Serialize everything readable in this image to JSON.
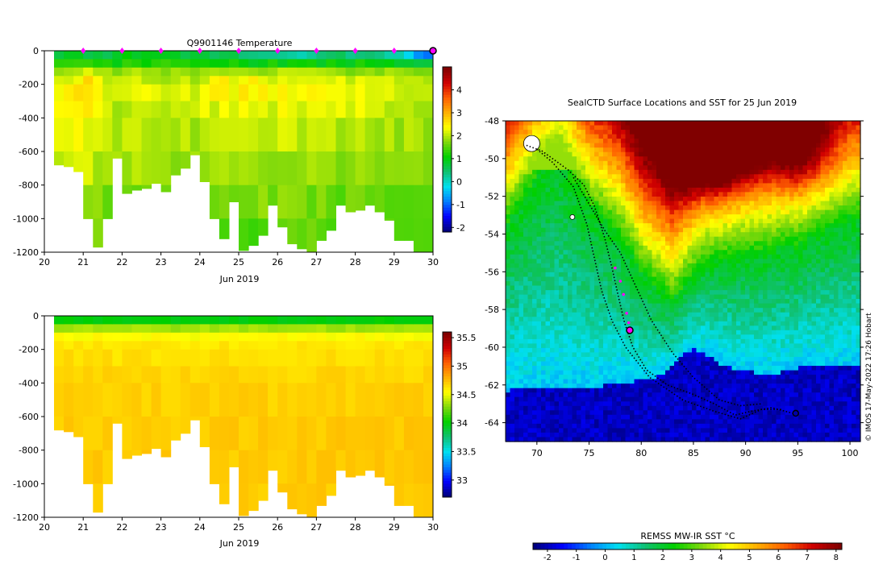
{
  "colors": {
    "cmap": [
      "#00007f",
      "#0000ff",
      "#0080ff",
      "#00e0f0",
      "#10c070",
      "#00d000",
      "#7ed80b",
      "#ffff00",
      "#ffb000",
      "#ff6000",
      "#d00000",
      "#800000"
    ],
    "land": "#ffffff",
    "track": "#000000",
    "profile_marker": "#ff00ff",
    "current_marker": "#ff00ff"
  },
  "chart_data": [
    {
      "id": "temperature",
      "type": "heatmap",
      "title": "Q9901146  Temperature",
      "xlabel": "Jun 2019",
      "ylabel": "",
      "xlim": [
        20,
        30
      ],
      "ylim": [
        -1200,
        0
      ],
      "x_ticks": [
        "20",
        "21",
        "22",
        "23",
        "24",
        "25",
        "26",
        "27",
        "28",
        "29",
        "30"
      ],
      "y_ticks": [
        "0",
        "-200",
        "-400",
        "-600",
        "-800",
        "-1000",
        "-1200"
      ],
      "colorbar": {
        "min": -2.2,
        "max": 5.0,
        "ticks": [
          "-2",
          "-1",
          "0",
          "1",
          "2",
          "3",
          "4"
        ]
      },
      "profile_days": [
        21,
        22,
        23,
        24,
        25,
        26,
        27,
        28,
        29,
        30
      ],
      "depth_bins_m": [
        0,
        50,
        100,
        150,
        200,
        300,
        400,
        600,
        800,
        1000,
        1200
      ],
      "profiles": [
        {
          "day": 20.25,
          "max_depth": 680,
          "values": [
            0.8,
            1.2,
            1.8,
            2.2,
            2.4,
            2.3,
            2.2,
            2.0,
            1.8,
            1.6
          ]
        },
        {
          "day": 20.5,
          "max_depth": 690,
          "values": [
            0.9,
            1.3,
            1.9,
            2.3,
            2.5,
            2.4,
            2.3,
            2.0,
            1.8,
            1.6
          ]
        },
        {
          "day": 20.75,
          "max_depth": 720,
          "values": [
            0.8,
            1.4,
            2.0,
            2.4,
            2.5,
            2.4,
            2.3,
            2.1,
            1.8,
            1.6
          ]
        },
        {
          "day": 21.0,
          "max_depth": 1000,
          "values": [
            0.5,
            1.5,
            2.2,
            2.6,
            2.7,
            2.5,
            2.3,
            2.1,
            1.9,
            1.7
          ]
        },
        {
          "day": 21.25,
          "max_depth": 1170,
          "values": [
            0.6,
            1.3,
            2.0,
            2.4,
            2.5,
            2.4,
            2.2,
            2.0,
            1.8,
            1.6
          ]
        },
        {
          "day": 21.5,
          "max_depth": 1000,
          "values": [
            0.7,
            1.2,
            1.8,
            2.1,
            2.2,
            2.1,
            2.0,
            1.9,
            1.7,
            1.5
          ]
        },
        {
          "day": 21.75,
          "max_depth": 640,
          "values": [
            0.8,
            1.1,
            1.7,
            2.0,
            2.1,
            2.0,
            1.9,
            1.8,
            1.7,
            1.5
          ]
        },
        {
          "day": 22.0,
          "max_depth": 850,
          "values": [
            0.9,
            1.2,
            1.9,
            2.2,
            2.2,
            2.1,
            2.0,
            1.9,
            1.7,
            1.5
          ]
        },
        {
          "day": 22.25,
          "max_depth": 830,
          "values": [
            0.9,
            1.3,
            2.0,
            2.2,
            2.3,
            2.2,
            2.0,
            1.9,
            1.7,
            1.5
          ]
        },
        {
          "day": 22.5,
          "max_depth": 820,
          "values": [
            0.8,
            1.2,
            1.8,
            2.1,
            2.2,
            2.1,
            2.0,
            1.9,
            1.7,
            1.5
          ]
        },
        {
          "day": 22.75,
          "max_depth": 790,
          "values": [
            0.9,
            1.3,
            1.9,
            2.1,
            2.2,
            2.1,
            2.0,
            1.8,
            1.7,
            1.5
          ]
        },
        {
          "day": 23.0,
          "max_depth": 840,
          "values": [
            0.8,
            1.2,
            1.8,
            2.0,
            2.1,
            2.0,
            1.9,
            1.8,
            1.6,
            1.5
          ]
        },
        {
          "day": 23.25,
          "max_depth": 740,
          "values": [
            0.8,
            1.2,
            1.9,
            2.1,
            2.2,
            2.1,
            2.0,
            1.8,
            1.7,
            1.5
          ]
        },
        {
          "day": 23.5,
          "max_depth": 700,
          "values": [
            0.7,
            1.1,
            1.8,
            2.1,
            2.2,
            2.1,
            2.0,
            1.8,
            1.6,
            1.5
          ]
        },
        {
          "day": 23.75,
          "max_depth": 620,
          "values": [
            0.8,
            1.2,
            1.7,
            2.0,
            2.1,
            2.0,
            1.9,
            1.8,
            1.6,
            1.5
          ]
        },
        {
          "day": 24.0,
          "max_depth": 780,
          "values": [
            0.6,
            1.1,
            1.8,
            2.2,
            2.3,
            2.2,
            2.0,
            1.8,
            1.6,
            1.5
          ]
        },
        {
          "day": 24.25,
          "max_depth": 1000,
          "values": [
            0.5,
            1.0,
            1.9,
            2.3,
            2.4,
            2.2,
            2.0,
            1.8,
            1.7,
            1.5
          ]
        },
        {
          "day": 24.5,
          "max_depth": 1120,
          "values": [
            0.5,
            1.1,
            2.0,
            2.4,
            2.5,
            2.3,
            2.1,
            1.9,
            1.7,
            1.5
          ]
        },
        {
          "day": 24.75,
          "max_depth": 900,
          "values": [
            0.6,
            1.2,
            2.0,
            2.3,
            2.4,
            2.2,
            2.0,
            1.9,
            1.7,
            1.5
          ]
        },
        {
          "day": 25.0,
          "max_depth": 1190,
          "values": [
            0.4,
            1.1,
            2.1,
            2.5,
            2.6,
            2.4,
            2.2,
            2.0,
            1.8,
            1.6
          ]
        },
        {
          "day": 25.25,
          "max_depth": 1160,
          "values": [
            0.4,
            1.0,
            2.0,
            2.4,
            2.5,
            2.3,
            2.1,
            1.9,
            1.7,
            1.5
          ]
        },
        {
          "day": 25.5,
          "max_depth": 1100,
          "values": [
            0.3,
            1.0,
            1.9,
            2.3,
            2.4,
            2.3,
            2.1,
            1.9,
            1.7,
            1.5
          ]
        },
        {
          "day": 25.75,
          "max_depth": 920,
          "values": [
            0.4,
            1.1,
            1.9,
            2.2,
            2.3,
            2.2,
            2.0,
            1.8,
            1.7,
            1.5
          ]
        },
        {
          "day": 26.0,
          "max_depth": 1050,
          "values": [
            0.3,
            1.0,
            2.0,
            2.4,
            2.5,
            2.3,
            2.1,
            1.9,
            1.7,
            1.5
          ]
        },
        {
          "day": 26.25,
          "max_depth": 1150,
          "values": [
            0.3,
            1.0,
            2.0,
            2.3,
            2.4,
            2.3,
            2.1,
            1.9,
            1.7,
            1.5
          ]
        },
        {
          "day": 26.5,
          "max_depth": 1180,
          "values": [
            0.2,
            1.0,
            1.9,
            2.3,
            2.4,
            2.2,
            2.0,
            1.9,
            1.7,
            1.5
          ]
        },
        {
          "day": 26.75,
          "max_depth": 1200,
          "values": [
            0.3,
            1.1,
            2.0,
            2.3,
            2.4,
            2.3,
            2.1,
            1.9,
            1.7,
            1.6
          ]
        },
        {
          "day": 27.0,
          "max_depth": 1130,
          "values": [
            0.3,
            1.0,
            1.9,
            2.2,
            2.3,
            2.2,
            2.0,
            1.8,
            1.7,
            1.5
          ]
        },
        {
          "day": 27.25,
          "max_depth": 1070,
          "values": [
            0.4,
            1.1,
            1.9,
            2.2,
            2.3,
            2.2,
            2.0,
            1.8,
            1.7,
            1.5
          ]
        },
        {
          "day": 27.5,
          "max_depth": 920,
          "values": [
            0.5,
            1.1,
            1.9,
            2.2,
            2.3,
            2.2,
            2.0,
            1.8,
            1.6,
            1.5
          ]
        },
        {
          "day": 27.75,
          "max_depth": 960,
          "values": [
            0.4,
            1.0,
            1.8,
            2.1,
            2.2,
            2.1,
            2.0,
            1.8,
            1.6,
            1.5
          ]
        },
        {
          "day": 28.0,
          "max_depth": 950,
          "values": [
            0.4,
            1.1,
            1.9,
            2.2,
            2.3,
            2.2,
            2.0,
            1.8,
            1.7,
            1.5
          ]
        },
        {
          "day": 28.25,
          "max_depth": 920,
          "values": [
            0.3,
            1.0,
            1.9,
            2.2,
            2.2,
            2.1,
            2.0,
            1.8,
            1.6,
            1.5
          ]
        },
        {
          "day": 28.5,
          "max_depth": 960,
          "values": [
            0.3,
            1.0,
            1.8,
            2.1,
            2.2,
            2.1,
            1.9,
            1.8,
            1.6,
            1.5
          ]
        },
        {
          "day": 28.75,
          "max_depth": 1010,
          "values": [
            0.2,
            1.0,
            1.8,
            2.1,
            2.2,
            2.1,
            1.9,
            1.8,
            1.6,
            1.5
          ]
        },
        {
          "day": 29.0,
          "max_depth": 1130,
          "values": [
            0.1,
            0.9,
            1.8,
            2.1,
            2.2,
            2.1,
            1.9,
            1.8,
            1.6,
            1.5
          ]
        },
        {
          "day": 29.25,
          "max_depth": 1130,
          "values": [
            -0.3,
            0.9,
            1.8,
            2.1,
            2.2,
            2.1,
            1.9,
            1.8,
            1.6,
            1.5
          ]
        },
        {
          "day": 29.5,
          "max_depth": 1200,
          "values": [
            -0.8,
            0.8,
            1.7,
            2.0,
            2.1,
            2.0,
            1.9,
            1.8,
            1.6,
            1.5
          ]
        },
        {
          "day": 29.75,
          "max_depth": 1200,
          "values": [
            -1.0,
            0.8,
            1.7,
            2.0,
            2.1,
            2.0,
            1.9,
            1.8,
            1.6,
            1.5
          ]
        }
      ]
    },
    {
      "id": "salinity",
      "type": "heatmap",
      "title": "",
      "xlabel": "Jun 2019",
      "ylabel": "",
      "xlim": [
        20,
        30
      ],
      "ylim": [
        -1200,
        0
      ],
      "x_ticks": [
        "20",
        "21",
        "22",
        "23",
        "24",
        "25",
        "26",
        "27",
        "28",
        "29",
        "30"
      ],
      "y_ticks": [
        "0",
        "-200",
        "-400",
        "-600",
        "-800",
        "-1000",
        "-1200"
      ],
      "colorbar": {
        "min": 32.7,
        "max": 35.6,
        "ticks": [
          "33",
          "33.5",
          "34",
          "34.5",
          "35",
          "35.5"
        ]
      },
      "depth_bins_m": [
        0,
        50,
        100,
        150,
        200,
        300,
        400,
        600,
        800,
        1000,
        1200
      ],
      "profile_values": [
        34.0,
        34.35,
        34.55,
        34.62,
        34.65,
        34.68,
        34.7,
        34.72,
        34.72,
        34.72
      ]
    },
    {
      "id": "sst_map",
      "type": "heatmap",
      "title": "SealCTD Surface Locations and SST for 25 Jun 2019",
      "xlabel": "",
      "ylabel": "",
      "xlim": [
        67,
        101
      ],
      "ylim": [
        -65,
        -48
      ],
      "x_ticks": [
        "70",
        "75",
        "80",
        "85",
        "90",
        "95",
        "100"
      ],
      "y_ticks": [
        "-48",
        "-50",
        "-52",
        "-54",
        "-56",
        "-58",
        "-60",
        "-62",
        "-64"
      ],
      "colorbar": {
        "label": "REMSS MW-IR SST °C",
        "min": -2.5,
        "max": 8.2,
        "ticks": [
          "-2",
          "-1",
          "0",
          "1",
          "2",
          "3",
          "4",
          "5",
          "6",
          "7",
          "8"
        ]
      },
      "front_lat_by_lon": [
        {
          "lon": 67,
          "lat": -53.5
        },
        {
          "lon": 70,
          "lat": -51.0
        },
        {
          "lon": 72,
          "lat": -50.0
        },
        {
          "lon": 75,
          "lat": -52.5
        },
        {
          "lon": 78,
          "lat": -54.0
        },
        {
          "lon": 80,
          "lat": -56.0
        },
        {
          "lon": 83,
          "lat": -57.5
        },
        {
          "lon": 86,
          "lat": -55.5
        },
        {
          "lon": 90,
          "lat": -55.0
        },
        {
          "lon": 95,
          "lat": -54.5
        },
        {
          "lon": 100,
          "lat": -53.0
        },
        {
          "lon": 101,
          "lat": -53.0
        }
      ],
      "ice_edge_lat_by_lon": [
        {
          "lon": 67,
          "lat": -62.3
        },
        {
          "lon": 78,
          "lat": -62.0
        },
        {
          "lon": 82,
          "lat": -61.5
        },
        {
          "lon": 85,
          "lat": -60.0
        },
        {
          "lon": 88,
          "lat": -61.0
        },
        {
          "lon": 92,
          "lat": -61.5
        },
        {
          "lon": 96,
          "lat": -61.0
        },
        {
          "lon": 101,
          "lat": -61.0
        }
      ],
      "warm_patches": [
        {
          "lon": 89,
          "lat": -49.0,
          "temp": 7.2
        },
        {
          "lon": 86,
          "lat": -50.0,
          "temp": 6.8
        },
        {
          "lon": 95,
          "lat": -49.5,
          "temp": 6.5
        }
      ],
      "track": [
        {
          "lon": 69.0,
          "lat": -49.3
        },
        {
          "lon": 70.5,
          "lat": -49.6
        },
        {
          "lon": 72.0,
          "lat": -50.2
        },
        {
          "lon": 73.0,
          "lat": -50.6
        },
        {
          "lon": 74.5,
          "lat": -51.4
        },
        {
          "lon": 75.5,
          "lat": -52.5
        },
        {
          "lon": 76.5,
          "lat": -54.2
        },
        {
          "lon": 77.2,
          "lat": -55.8
        },
        {
          "lon": 77.8,
          "lat": -57.3
        },
        {
          "lon": 78.4,
          "lat": -58.7
        },
        {
          "lon": 79.2,
          "lat": -60.0
        },
        {
          "lon": 80.5,
          "lat": -61.2
        },
        {
          "lon": 82.5,
          "lat": -62.0
        },
        {
          "lon": 85.0,
          "lat": -62.5
        },
        {
          "lon": 87.0,
          "lat": -63.0
        },
        {
          "lon": 89.0,
          "lat": -63.6
        },
        {
          "lon": 90.5,
          "lat": -63.4
        },
        {
          "lon": 92.5,
          "lat": -63.2
        },
        {
          "lon": 94.5,
          "lat": -63.5
        }
      ],
      "track2": [
        {
          "lon": 70.0,
          "lat": -49.5
        },
        {
          "lon": 71.5,
          "lat": -50.2
        },
        {
          "lon": 73.5,
          "lat": -51.5
        },
        {
          "lon": 74.8,
          "lat": -53.5
        },
        {
          "lon": 75.6,
          "lat": -55.5
        },
        {
          "lon": 76.2,
          "lat": -57.0
        },
        {
          "lon": 77.2,
          "lat": -58.6
        },
        {
          "lon": 78.5,
          "lat": -60.0
        },
        {
          "lon": 80.8,
          "lat": -61.6
        },
        {
          "lon": 84.0,
          "lat": -62.8
        },
        {
          "lon": 87.0,
          "lat": -63.4
        },
        {
          "lon": 89.5,
          "lat": -63.8
        },
        {
          "lon": 91.5,
          "lat": -63.3
        },
        {
          "lon": 93.5,
          "lat": -63.3
        }
      ],
      "track3": [
        {
          "lon": 73.5,
          "lat": -51.0
        },
        {
          "lon": 75.0,
          "lat": -52.4
        },
        {
          "lon": 76.5,
          "lat": -53.8
        },
        {
          "lon": 78.0,
          "lat": -55.0
        },
        {
          "lon": 79.5,
          "lat": -56.8
        },
        {
          "lon": 81.0,
          "lat": -58.6
        },
        {
          "lon": 83.0,
          "lat": -60.3
        },
        {
          "lon": 85.0,
          "lat": -61.6
        },
        {
          "lon": 87.5,
          "lat": -62.8
        },
        {
          "lon": 89.5,
          "lat": -63.1
        },
        {
          "lon": 91.5,
          "lat": -63.0
        }
      ],
      "recent_positions": [
        {
          "lon": 77.5,
          "lat": -55.8
        },
        {
          "lon": 78.0,
          "lat": -56.5
        },
        {
          "lon": 78.3,
          "lat": -57.2
        },
        {
          "lon": 78.6,
          "lat": -58.2
        },
        {
          "lon": 78.8,
          "lat": -58.7
        }
      ],
      "current_position": {
        "lon": 78.9,
        "lat": -59.1
      },
      "end_position": {
        "lon": 94.8,
        "lat": -63.5
      },
      "islands": [
        {
          "lon": 69.5,
          "lat": -49.2
        },
        {
          "lon": 73.4,
          "lat": -53.1
        }
      ]
    }
  ],
  "footer": {
    "credit": "© IMOS 17-May-2022 17:26 Hobart"
  }
}
